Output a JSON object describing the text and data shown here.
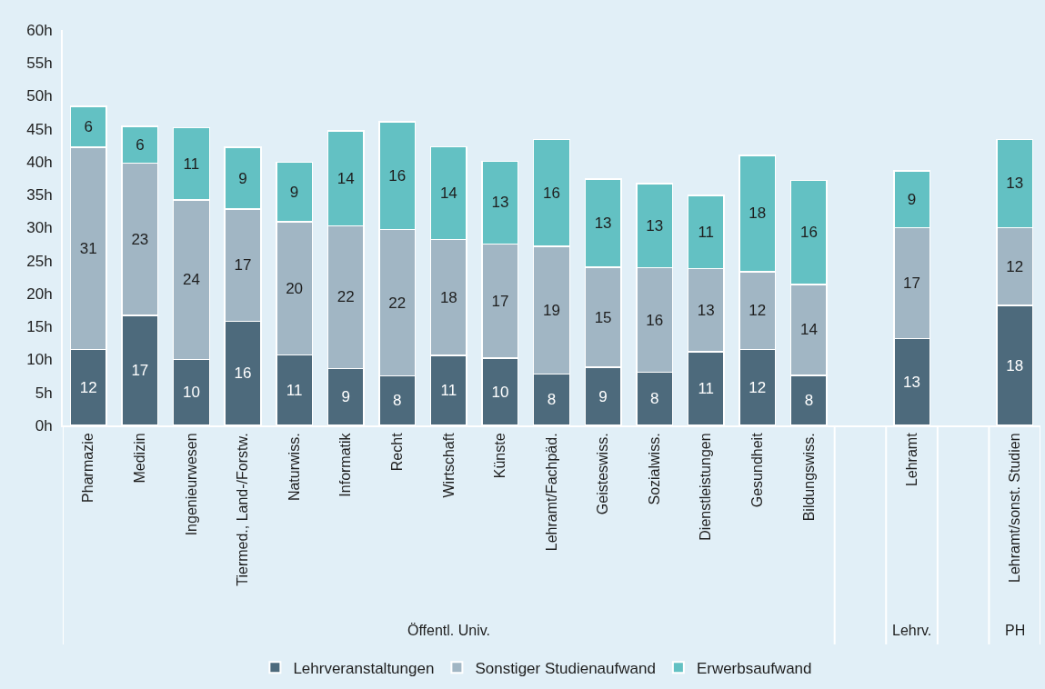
{
  "chart_data": {
    "type": "bar",
    "stacked": true,
    "categories": [
      "Pharmazie",
      "Medizin",
      "Ingenieurwesen",
      "Tiermed., Land-/Forstw.",
      "Naturwiss.",
      "Informatik",
      "Recht",
      "Wirtschaft",
      "Künste",
      "Lehramt/Fachpäd.",
      "Geisteswiss.",
      "Sozialwiss.",
      "Dienstleistungen",
      "Gesundheit",
      "Bildungswiss.",
      null,
      "Lehramt",
      null,
      "Lehramt/sonst. Studien"
    ],
    "series": [
      {
        "name": "Lehrveranstaltungen",
        "color": "#4d6a7c",
        "values": [
          11.5,
          16.7,
          10.0,
          15.8,
          10.7,
          8.6,
          7.5,
          10.6,
          10.2,
          7.8,
          8.8,
          8.1,
          11.2,
          11.5,
          7.6,
          null,
          13.2,
          null,
          18.2
        ],
        "value_labels": [
          "12",
          "17",
          "10",
          "16",
          "11",
          "9",
          "8",
          "11",
          "10",
          "8",
          "9",
          "8",
          "11",
          "12",
          "8",
          null,
          "13",
          null,
          "18"
        ]
      },
      {
        "name": "Sonstiger Studienaufwand",
        "color": "#a1b6c4",
        "values": [
          30.7,
          23.1,
          24.2,
          17.0,
          20.2,
          21.7,
          22.2,
          17.6,
          17.3,
          19.4,
          15.2,
          15.8,
          12.6,
          11.8,
          13.8,
          null,
          16.8,
          null,
          11.8
        ],
        "value_labels": [
          "31",
          "23",
          "24",
          "17",
          "20",
          "22",
          "22",
          "18",
          "17",
          "19",
          "15",
          "16",
          "13",
          "12",
          "14",
          null,
          "17",
          null,
          "12"
        ]
      },
      {
        "name": "Erwerbsaufwand",
        "color": "#63c1c3",
        "values": [
          6.2,
          5.6,
          11.0,
          9.4,
          9.0,
          14.4,
          16.4,
          14.1,
          12.6,
          16.2,
          13.4,
          12.8,
          11.1,
          17.7,
          15.8,
          null,
          8.6,
          null,
          13.4
        ],
        "value_labels": [
          "6",
          "6",
          "11",
          "9",
          "9",
          "14",
          "16",
          "14",
          "13",
          "16",
          "13",
          "13",
          "11",
          "18",
          "16",
          null,
          "9",
          null,
          "13"
        ]
      }
    ],
    "ylim": [
      0,
      60
    ],
    "yticks": [
      {
        "value": 0,
        "label": "0h"
      },
      {
        "value": 5,
        "label": "5h"
      },
      {
        "value": 10,
        "label": "10h"
      },
      {
        "value": 15,
        "label": "15h"
      },
      {
        "value": 20,
        "label": "20h"
      },
      {
        "value": 25,
        "label": "25h"
      },
      {
        "value": 30,
        "label": "30h"
      },
      {
        "value": 35,
        "label": "35h"
      },
      {
        "value": 40,
        "label": "40h"
      },
      {
        "value": 45,
        "label": "45h"
      },
      {
        "value": 50,
        "label": "50h"
      },
      {
        "value": 55,
        "label": "55h"
      },
      {
        "value": 60,
        "label": "60h"
      }
    ],
    "legend": "bottom",
    "annotations": [
      "Öffentl. Univ.",
      "Lehrv.",
      "PH"
    ]
  }
}
